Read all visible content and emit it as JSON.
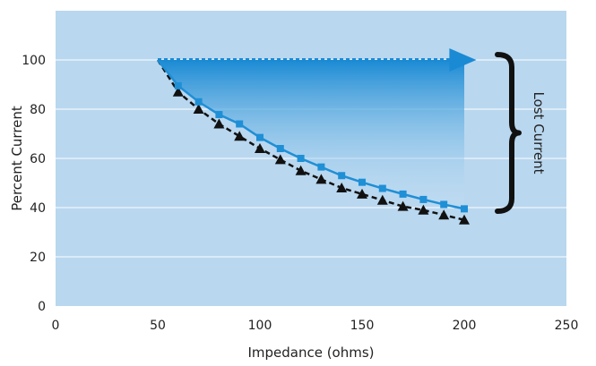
{
  "chart_data": {
    "type": "line",
    "title": "",
    "xlabel": "Impedance (ohms)",
    "ylabel": "Percent Current",
    "xlim": [
      0,
      250
    ],
    "ylim": [
      0,
      120
    ],
    "xticks": [
      0,
      50,
      100,
      150,
      200,
      250
    ],
    "yticks": [
      0,
      20,
      40,
      60,
      80,
      100
    ],
    "grid": "horizontal",
    "colors": {
      "plot_background": "#b9d7ef",
      "solid_series": "#1f8fd6",
      "dashed_series": "#111111",
      "arrow": "#1a8ad4",
      "gradient_top": "#1a8ad4",
      "gradient_bottom": "#cfe6f7",
      "bracket": "#111111",
      "gridline": "#ffffff"
    },
    "series": [
      {
        "style": "solid-square-markers",
        "x": [
          50,
          60,
          70,
          80,
          90,
          100,
          110,
          120,
          130,
          140,
          150,
          160,
          170,
          180,
          190,
          200
        ],
        "values": [
          100,
          89.5,
          83,
          77.8,
          74,
          68.5,
          64,
          60,
          56.5,
          53,
          50.3,
          47.8,
          45.5,
          43.3,
          41.3,
          39.5
        ]
      },
      {
        "style": "dashed-triangle-markers",
        "x": [
          50,
          60,
          70,
          80,
          90,
          100,
          110,
          120,
          130,
          140,
          150,
          160,
          170,
          180,
          190,
          200
        ],
        "values": [
          100,
          87,
          80,
          74,
          69,
          64,
          59.5,
          55,
          51.5,
          48,
          45.5,
          43,
          40.5,
          39,
          37,
          35
        ]
      }
    ],
    "reference_line": {
      "style": "dotted-arrow",
      "y": 100,
      "x_start": 50,
      "x_end": 205
    },
    "annotations": [
      {
        "text": "Lost Current",
        "y_range": [
          40,
          100
        ],
        "rotation": "vertical"
      }
    ]
  }
}
